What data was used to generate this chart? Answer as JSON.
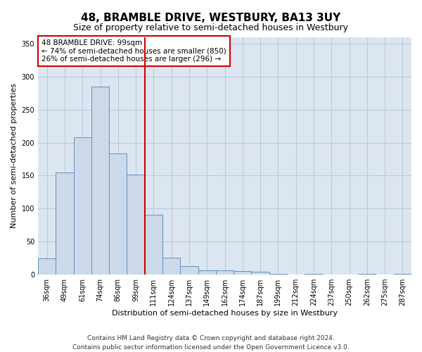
{
  "title": "48, BRAMBLE DRIVE, WESTBURY, BA13 3UY",
  "subtitle": "Size of property relative to semi-detached houses in Westbury",
  "xlabel": "Distribution of semi-detached houses by size in Westbury",
  "ylabel": "Number of semi-detached properties",
  "footer1": "Contains HM Land Registry data © Crown copyright and database right 2024.",
  "footer2": "Contains public sector information licensed under the Open Government Licence v3.0.",
  "annotation_line1": "48 BRAMBLE DRIVE: 99sqm",
  "annotation_line2": "← 74% of semi-detached houses are smaller (850)",
  "annotation_line3": "26% of semi-detached houses are larger (296) →",
  "bar_categories": [
    "36sqm",
    "49sqm",
    "61sqm",
    "74sqm",
    "86sqm",
    "99sqm",
    "111sqm",
    "124sqm",
    "137sqm",
    "149sqm",
    "162sqm",
    "174sqm",
    "187sqm",
    "199sqm",
    "212sqm",
    "224sqm",
    "237sqm",
    "250sqm",
    "262sqm",
    "275sqm",
    "287sqm"
  ],
  "bar_values": [
    25,
    155,
    208,
    285,
    183,
    152,
    91,
    26,
    13,
    6,
    6,
    5,
    4,
    1,
    0,
    1,
    0,
    0,
    1,
    0,
    1
  ],
  "bar_color": "#ccd9e8",
  "bar_edge_color": "#6090c0",
  "vline_color": "#cc0000",
  "vline_x": 5.5,
  "ylim": [
    0,
    360
  ],
  "yticks": [
    0,
    50,
    100,
    150,
    200,
    250,
    300,
    350
  ],
  "plot_bg_color": "#dce6f0",
  "background_color": "#ffffff",
  "grid_color": "#b8c8d8",
  "annotation_box_color": "#cc0000",
  "title_fontsize": 11,
  "subtitle_fontsize": 9,
  "axis_label_fontsize": 8,
  "tick_fontsize": 7,
  "annotation_fontsize": 7.5,
  "footer_fontsize": 6.5
}
